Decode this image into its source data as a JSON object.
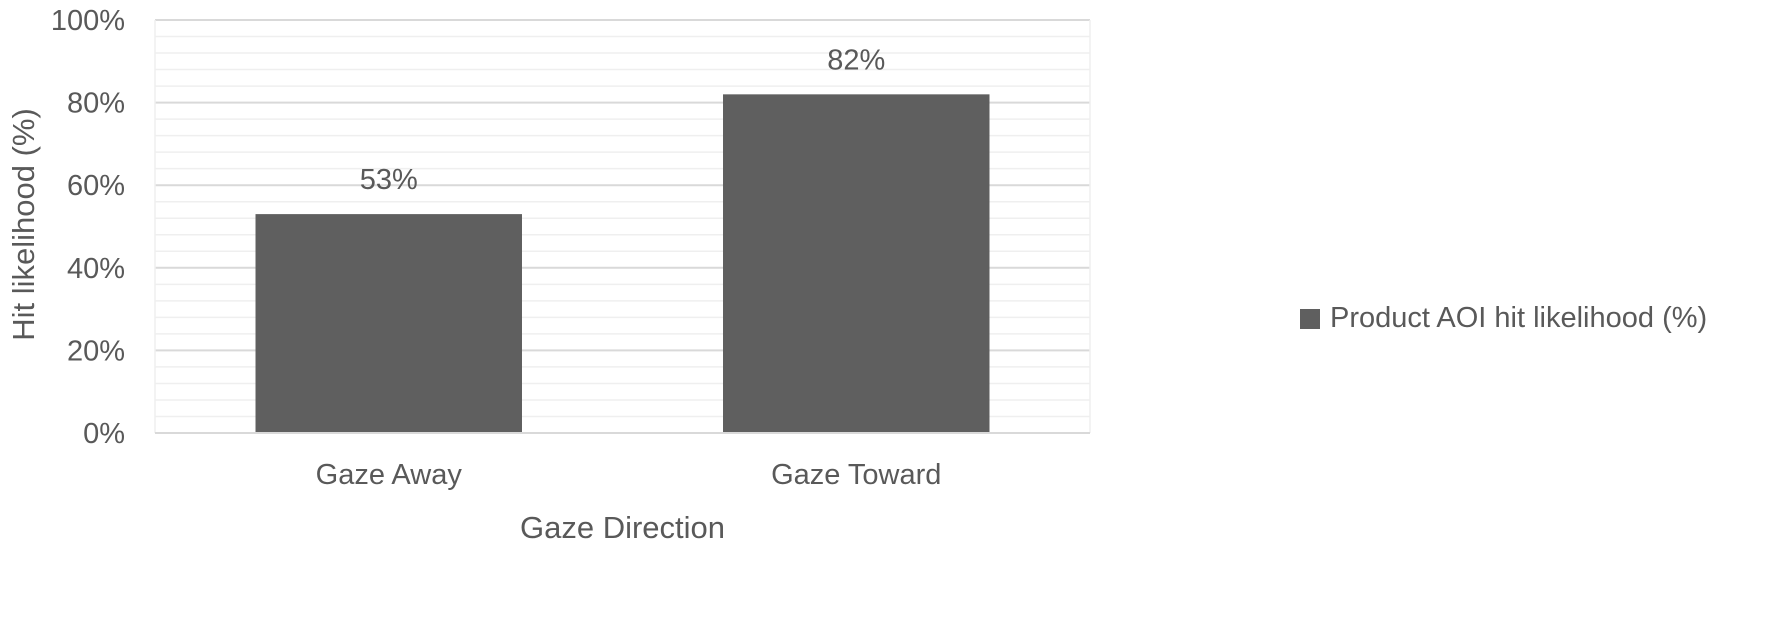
{
  "chart_data": {
    "type": "bar",
    "title": "",
    "xlabel": "Gaze Direction",
    "ylabel": "Hit likelihood (%)",
    "categories": [
      "Gaze Away",
      "Gaze Toward"
    ],
    "series": [
      {
        "name": "Product AOI hit likelihood (%)",
        "values": [
          53,
          82
        ],
        "data_labels": [
          "53%",
          "82%"
        ],
        "color": "#5f5f5f"
      }
    ],
    "ylim": [
      0,
      100
    ],
    "y_ticks": [
      0,
      20,
      40,
      60,
      80,
      100
    ],
    "y_tick_labels": [
      "0%",
      "20%",
      "40%",
      "60%",
      "80%",
      "100%"
    ],
    "grid": true,
    "legend_position": "right"
  },
  "colors": {
    "bar": "#5f5f5f",
    "text": "#595959",
    "grid_major": "#d9d9d9",
    "grid_minor": "#efefef",
    "axis": "#d9d9d9"
  }
}
